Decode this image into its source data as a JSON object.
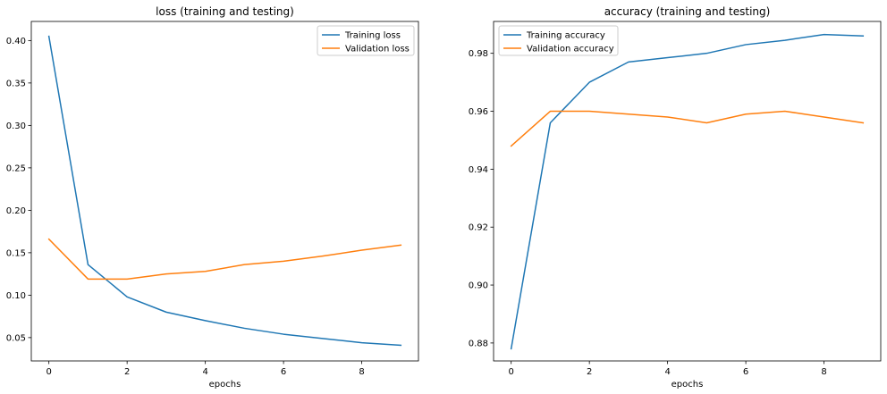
{
  "chart_data": [
    {
      "type": "line",
      "title": "loss (training and testing)",
      "xlabel": "epochs",
      "ylabel": "",
      "x": [
        0,
        1,
        2,
        3,
        4,
        5,
        6,
        7,
        8,
        9
      ],
      "xlim": [
        -0.45,
        9.45
      ],
      "ylim": [
        0.0225,
        0.4225
      ],
      "xticks": [
        0,
        2,
        4,
        6,
        8
      ],
      "yticks": [
        0.05,
        0.1,
        0.15,
        0.2,
        0.25,
        0.3,
        0.35,
        0.4
      ],
      "ytick_labels": [
        "0.05",
        "0.10",
        "0.15",
        "0.20",
        "0.25",
        "0.30",
        "0.35",
        "0.40"
      ],
      "grid": false,
      "legend_position": "top-right",
      "series": [
        {
          "name": "Training loss",
          "color": "#1f77b4",
          "values": [
            0.405,
            0.136,
            0.098,
            0.08,
            0.07,
            0.061,
            0.054,
            0.049,
            0.044,
            0.041
          ]
        },
        {
          "name": "Validation loss",
          "color": "#ff7f0e",
          "values": [
            0.166,
            0.119,
            0.119,
            0.125,
            0.128,
            0.136,
            0.14,
            0.146,
            0.153,
            0.159
          ]
        }
      ]
    },
    {
      "type": "line",
      "title": "accuracy (training and testing)",
      "xlabel": "epochs",
      "ylabel": "",
      "x": [
        0,
        1,
        2,
        3,
        4,
        5,
        6,
        7,
        8,
        9
      ],
      "xlim": [
        -0.45,
        9.45
      ],
      "ylim": [
        0.8738,
        0.991
      ],
      "xticks": [
        0,
        2,
        4,
        6,
        8
      ],
      "yticks": [
        0.88,
        0.9,
        0.92,
        0.94,
        0.96,
        0.98
      ],
      "ytick_labels": [
        "0.88",
        "0.90",
        "0.92",
        "0.94",
        "0.96",
        "0.98"
      ],
      "grid": false,
      "legend_position": "top-left",
      "series": [
        {
          "name": "Training accuracy",
          "color": "#1f77b4",
          "values": [
            0.878,
            0.956,
            0.97,
            0.977,
            0.9785,
            0.98,
            0.983,
            0.9845,
            0.9865,
            0.986
          ]
        },
        {
          "name": "Validation accuracy",
          "color": "#ff7f0e",
          "values": [
            0.948,
            0.96,
            0.96,
            0.959,
            0.958,
            0.956,
            0.959,
            0.96,
            0.958,
            0.956
          ]
        }
      ]
    }
  ]
}
